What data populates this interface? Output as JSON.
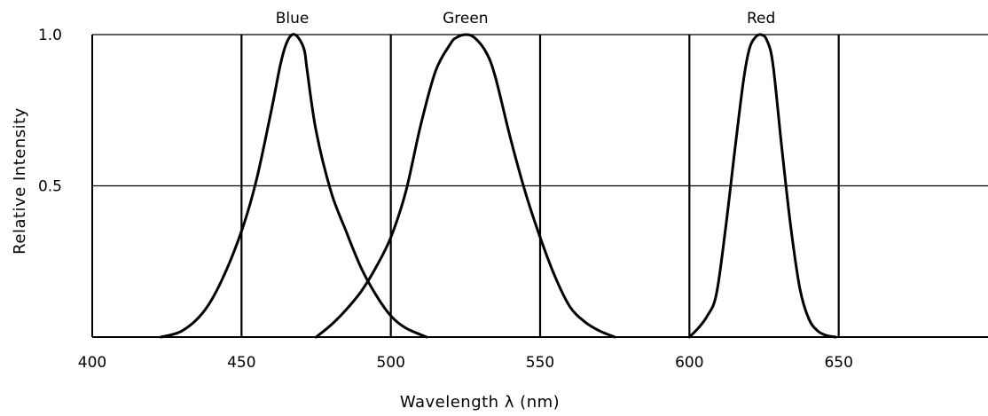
{
  "chart_data": {
    "type": "line",
    "title": "",
    "xlabel": "Wavelength λ (nm)",
    "ylabel": "Relative Intensity",
    "xlim": [
      400,
      700
    ],
    "ylim": [
      0,
      1.0
    ],
    "grid": true,
    "x_ticks": [
      400,
      450,
      500,
      550,
      600,
      650
    ],
    "x_tick_labels": [
      "400",
      "450",
      "500",
      "550",
      "600",
      "650"
    ],
    "y_ticks": [
      0.5,
      1.0
    ],
    "y_tick_labels": [
      "0.5",
      "1.0"
    ],
    "vertical_gridlines": [
      450,
      500,
      550,
      600,
      650
    ],
    "horizontal_gridlines": [
      0.5,
      1.0
    ],
    "series": [
      {
        "name": "Blue",
        "color": "#000000",
        "x": [
          423,
          430,
          437,
          443,
          450,
          455,
          460,
          463,
          465,
          467,
          469,
          471,
          472,
          475,
          480,
          485,
          490,
          495,
          500,
          505,
          512
        ],
        "y": [
          0.0,
          0.02,
          0.08,
          0.18,
          0.35,
          0.52,
          0.75,
          0.9,
          0.97,
          1.0,
          0.99,
          0.95,
          0.88,
          0.68,
          0.48,
          0.35,
          0.23,
          0.14,
          0.07,
          0.03,
          0.0
        ]
      },
      {
        "name": "Green",
        "color": "#000000",
        "x": [
          475,
          480,
          485,
          490,
          495,
          500,
          505,
          510,
          515,
          520,
          522,
          525,
          528,
          532,
          535,
          540,
          545,
          550,
          555,
          560,
          565,
          570,
          575
        ],
        "y": [
          0.0,
          0.04,
          0.09,
          0.15,
          0.23,
          0.33,
          0.48,
          0.7,
          0.88,
          0.97,
          0.99,
          1.0,
          0.99,
          0.94,
          0.86,
          0.66,
          0.48,
          0.33,
          0.2,
          0.1,
          0.05,
          0.02,
          0.0
        ]
      },
      {
        "name": "Red",
        "color": "#000000",
        "x": [
          600,
          603,
          606,
          609,
          612,
          615,
          618,
          620,
          622,
          624,
          626,
          628,
          631,
          634,
          637,
          640,
          643,
          646,
          649
        ],
        "y": [
          0.0,
          0.03,
          0.07,
          0.14,
          0.35,
          0.6,
          0.84,
          0.95,
          0.99,
          1.0,
          0.98,
          0.9,
          0.62,
          0.36,
          0.16,
          0.06,
          0.02,
          0.005,
          0.0
        ]
      }
    ]
  }
}
